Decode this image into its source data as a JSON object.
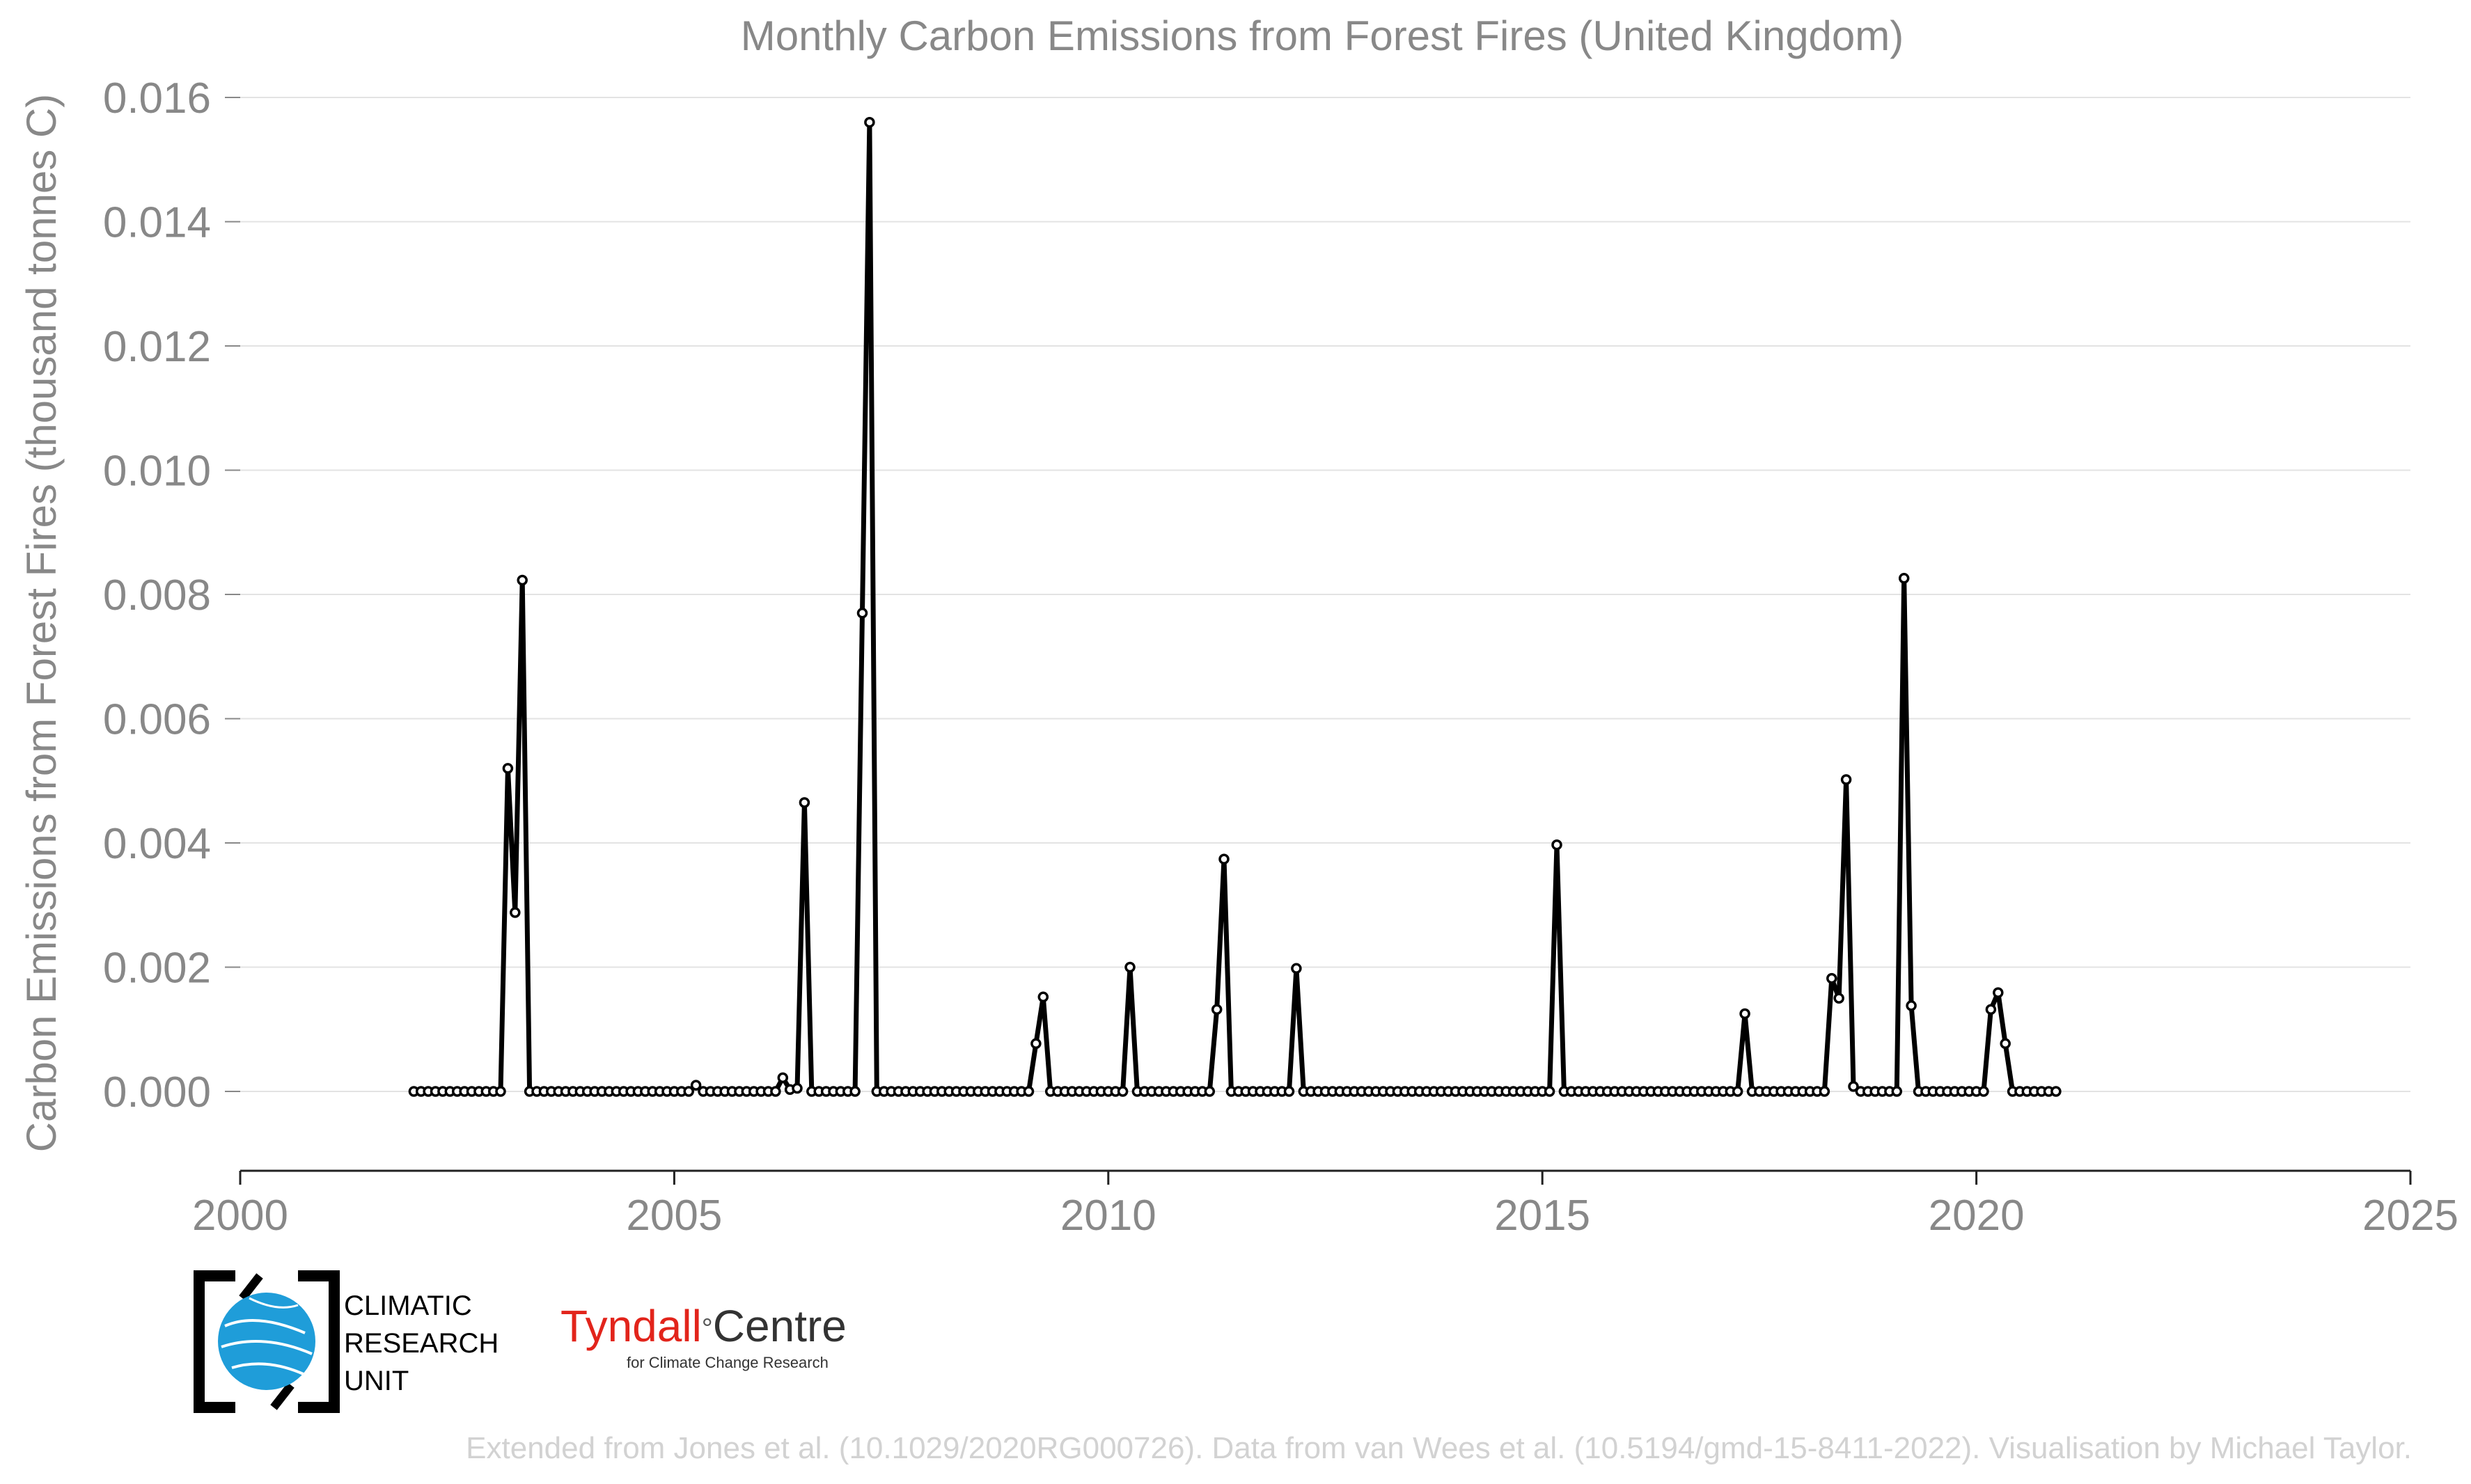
{
  "chart_data": {
    "type": "line",
    "title": "Monthly Carbon Emissions from Forest Fires (United Kingdom)",
    "xlabel": "",
    "ylabel": "Carbon Emissions from Forest Fires (thousand tonnes C)",
    "xlim": [
      2000,
      2025
    ],
    "ylim": [
      -0.0012,
      0.016
    ],
    "x_ticks": [
      2000,
      2005,
      2010,
      2015,
      2020,
      2025
    ],
    "x_tick_labels": [
      "2000",
      "2005",
      "2010",
      "2015",
      "2020",
      "2025"
    ],
    "y_ticks": [
      0,
      0.002,
      0.004,
      0.006,
      0.008,
      0.01,
      0.012,
      0.014,
      0.016
    ],
    "y_tick_labels": [
      "0.000",
      "0.002",
      "0.004",
      "0.006",
      "0.008",
      "0.010",
      "0.012",
      "0.014",
      "0.016"
    ],
    "grid": "horizontal",
    "start": "2002-01",
    "series": [
      {
        "color": "#000000",
        "values": [
          0,
          0,
          0,
          0,
          0,
          0,
          0,
          0,
          0,
          0,
          0,
          0,
          0,
          0.0052,
          0.00288,
          0.00823,
          0,
          0,
          0,
          0,
          0,
          0,
          0,
          0,
          0,
          0,
          0,
          0,
          0,
          0,
          0,
          0,
          0,
          0,
          0,
          0,
          0,
          0,
          0,
          0.0001,
          0,
          0,
          0,
          0,
          0,
          0,
          0,
          0,
          0,
          0,
          0,
          0.00022,
          3e-05,
          5e-05,
          0.00465,
          0,
          0,
          0,
          0,
          0,
          0,
          0,
          0.0077,
          0.0156,
          0,
          0,
          0,
          0,
          0,
          0,
          0,
          0,
          0,
          0,
          0,
          0,
          0,
          0,
          0,
          0,
          0,
          0,
          0,
          0,
          0,
          0,
          0.00077,
          0.00152,
          0,
          0,
          0,
          0,
          0,
          0,
          0,
          0,
          0,
          0,
          0,
          0.002,
          0,
          0,
          0,
          0,
          0,
          0,
          0,
          0,
          0,
          0,
          0,
          0.00132,
          0.00374,
          0,
          0,
          0,
          0,
          0,
          0,
          0,
          0,
          0,
          0.00198,
          0,
          0,
          0,
          0,
          0,
          0,
          0,
          0,
          0,
          0,
          0,
          0,
          0,
          0,
          0,
          0,
          0,
          0,
          0,
          0,
          0,
          0,
          0,
          0,
          0,
          0,
          0,
          0,
          0,
          0,
          0,
          0,
          0,
          0,
          0,
          0.00397,
          0,
          0,
          0,
          0,
          0,
          0,
          0,
          0,
          0,
          0,
          0,
          0,
          0,
          0,
          0,
          0,
          0,
          0,
          0,
          0,
          0,
          0,
          0,
          0,
          0,
          0.00125,
          0,
          0,
          0,
          0,
          0,
          0,
          0,
          0,
          0,
          0,
          0,
          0.00182,
          0.0015,
          0.00502,
          8e-05,
          0,
          0,
          0,
          0,
          0,
          0,
          0.00826,
          0.00138,
          0,
          0,
          0,
          0,
          0,
          0,
          0,
          0,
          0,
          0,
          0.00132,
          0.00159,
          0.00077,
          0,
          0,
          0,
          0,
          0,
          0,
          0
        ]
      }
    ]
  },
  "credit": "Extended from Jones et al. (10.1029/2020RG000726). Data from van Wees et al. (10.5194/gmd-15-8411-2022). Visualisation by Michael Taylor.",
  "logos": {
    "cru": [
      "CLIMATIC",
      "RESEARCH",
      "UNIT"
    ],
    "tyndall_red": "Tyndall",
    "tyndall_dark": "Centre",
    "tyndall_sub": "for Climate Change Research"
  }
}
